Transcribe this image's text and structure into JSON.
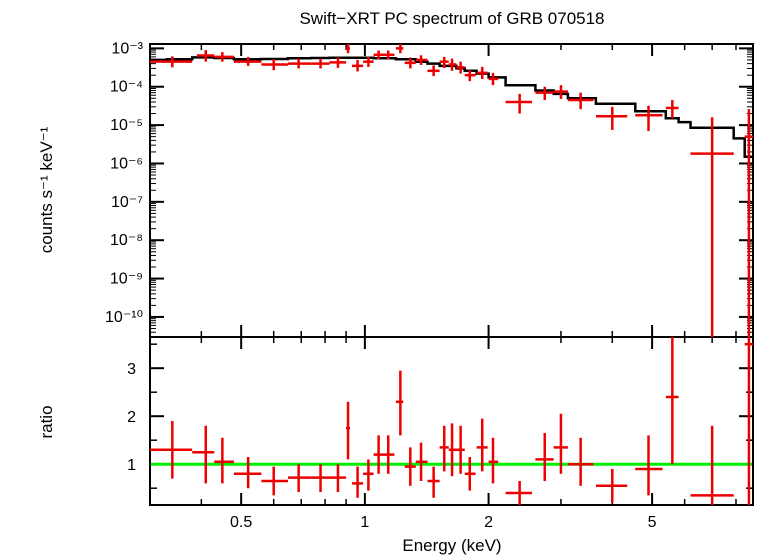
{
  "chart_data": [
    {
      "type": "scatter",
      "title": "Swift−XRT PC spectrum of GRB 070518",
      "xlabel": "Energy (keV)",
      "ylabel": "counts s⁻¹ keV⁻¹",
      "xscale": "log",
      "yscale": "log",
      "xlim": [
        0.3,
        8.8
      ],
      "ylim": [
        3e-11,
        0.0013
      ],
      "x_tick_labels": [
        "0.5",
        "1",
        "2",
        "5"
      ],
      "y_tick_labels": [
        "10⁻³",
        "10⁻⁴",
        "10⁻⁵",
        "10⁻⁶",
        "10⁻⁷",
        "10⁻⁸",
        "10⁻⁹",
        "10⁻¹⁰"
      ],
      "series": [
        {
          "kind": "data-with-errors",
          "color": "#ee0000",
          "points": [
            {
              "x": 0.34,
              "xlo": 0.3,
              "xhi": 0.38,
              "y": 0.00045,
              "ylo": 0.00032,
              "yhi": 0.00062
            },
            {
              "x": 0.41,
              "xlo": 0.39,
              "xhi": 0.43,
              "y": 0.00065,
              "ylo": 0.00045,
              "yhi": 0.0009
            },
            {
              "x": 0.45,
              "xlo": 0.43,
              "xhi": 0.48,
              "y": 0.0006,
              "ylo": 0.00045,
              "yhi": 0.0008
            },
            {
              "x": 0.52,
              "xlo": 0.48,
              "xhi": 0.56,
              "y": 0.00045,
              "ylo": 0.00035,
              "yhi": 0.0006
            },
            {
              "x": 0.6,
              "xlo": 0.56,
              "xhi": 0.65,
              "y": 0.00038,
              "ylo": 0.00027,
              "yhi": 0.00052
            },
            {
              "x": 0.69,
              "xlo": 0.65,
              "xhi": 0.74,
              "y": 0.0004,
              "ylo": 0.0003,
              "yhi": 0.00054
            },
            {
              "x": 0.78,
              "xlo": 0.74,
              "xhi": 0.82,
              "y": 0.0004,
              "ylo": 0.0003,
              "yhi": 0.00054
            },
            {
              "x": 0.86,
              "xlo": 0.82,
              "xhi": 0.9,
              "y": 0.00043,
              "ylo": 0.00031,
              "yhi": 0.00058
            },
            {
              "x": 0.91,
              "xlo": 0.9,
              "xhi": 0.92,
              "y": 0.001,
              "ylo": 0.00075,
              "yhi": 0.0013
            },
            {
              "x": 0.96,
              "xlo": 0.93,
              "xhi": 0.99,
              "y": 0.00035,
              "ylo": 0.00025,
              "yhi": 0.0005
            },
            {
              "x": 1.02,
              "xlo": 0.99,
              "xhi": 1.05,
              "y": 0.00045,
              "ylo": 0.00033,
              "yhi": 0.0006
            },
            {
              "x": 1.08,
              "xlo": 1.05,
              "xhi": 1.11,
              "y": 0.00068,
              "ylo": 0.00052,
              "yhi": 0.00088
            },
            {
              "x": 1.14,
              "xlo": 1.11,
              "xhi": 1.18,
              "y": 0.00068,
              "ylo": 0.00052,
              "yhi": 0.00088
            },
            {
              "x": 1.22,
              "xlo": 1.19,
              "xhi": 1.24,
              "y": 0.001,
              "ylo": 0.00075,
              "yhi": 0.0013
            },
            {
              "x": 1.29,
              "xlo": 1.25,
              "xhi": 1.33,
              "y": 0.00042,
              "ylo": 0.0003,
              "yhi": 0.00058
            },
            {
              "x": 1.37,
              "xlo": 1.33,
              "xhi": 1.42,
              "y": 0.0005,
              "ylo": 0.00037,
              "yhi": 0.00066
            },
            {
              "x": 1.47,
              "xlo": 1.42,
              "xhi": 1.52,
              "y": 0.00026,
              "ylo": 0.00019,
              "yhi": 0.00036
            },
            {
              "x": 1.56,
              "xlo": 1.52,
              "xhi": 1.6,
              "y": 0.00045,
              "ylo": 0.00031,
              "yhi": 0.0006
            },
            {
              "x": 1.63,
              "xlo": 1.6,
              "xhi": 1.67,
              "y": 0.00038,
              "ylo": 0.00026,
              "yhi": 0.00054
            },
            {
              "x": 1.71,
              "xlo": 1.67,
              "xhi": 1.75,
              "y": 0.00032,
              "ylo": 0.00022,
              "yhi": 0.00045
            },
            {
              "x": 1.8,
              "xlo": 1.75,
              "xhi": 1.86,
              "y": 0.0002,
              "ylo": 0.00014,
              "yhi": 0.00027
            },
            {
              "x": 1.93,
              "xlo": 1.87,
              "xhi": 1.99,
              "y": 0.00023,
              "ylo": 0.00016,
              "yhi": 0.00033
            },
            {
              "x": 2.05,
              "xlo": 2.0,
              "xhi": 2.11,
              "y": 0.00016,
              "ylo": 0.00011,
              "yhi": 0.00023
            },
            {
              "x": 2.38,
              "xlo": 2.2,
              "xhi": 2.55,
              "y": 4e-05,
              "ylo": 2e-05,
              "yhi": 6.5e-05
            },
            {
              "x": 2.74,
              "xlo": 2.6,
              "xhi": 2.88,
              "y": 7e-05,
              "ylo": 4.5e-05,
              "yhi": 0.0001
            },
            {
              "x": 3.0,
              "xlo": 2.88,
              "xhi": 3.12,
              "y": 7.5e-05,
              "ylo": 4.8e-05,
              "yhi": 0.00011
            },
            {
              "x": 3.35,
              "xlo": 3.12,
              "xhi": 3.6,
              "y": 4.5e-05,
              "ylo": 2.6e-05,
              "yhi": 7e-05
            },
            {
              "x": 4.0,
              "xlo": 3.65,
              "xhi": 4.35,
              "y": 1.7e-05,
              "ylo": 7.5e-06,
              "yhi": 3e-05
            },
            {
              "x": 4.9,
              "xlo": 4.55,
              "xhi": 5.3,
              "y": 1.8e-05,
              "ylo": 7e-06,
              "yhi": 3.2e-05
            },
            {
              "x": 5.6,
              "xlo": 5.4,
              "xhi": 5.8,
              "y": 2.8e-05,
              "ylo": 1.5e-05,
              "yhi": 4.5e-05
            },
            {
              "x": 7.0,
              "xlo": 6.2,
              "xhi": 7.9,
              "y": 1.8e-06,
              "ylo": 3e-11,
              "yhi": 1.6e-05
            },
            {
              "x": 8.6,
              "xlo": 8.4,
              "xhi": 8.8,
              "y": 5e-06,
              "ylo": 3e-11,
              "yhi": 2.6e-05
            }
          ]
        },
        {
          "kind": "model-histogram",
          "color": "#000000",
          "edges": [
            0.3,
            0.33,
            0.38,
            0.43,
            0.48,
            0.56,
            0.65,
            0.74,
            0.82,
            0.92,
            1.05,
            1.19,
            1.33,
            1.42,
            1.52,
            1.67,
            1.75,
            1.87,
            2.0,
            2.2,
            2.6,
            2.88,
            3.12,
            3.65,
            4.55,
            5.4,
            5.8,
            6.2,
            7.9,
            8.4,
            8.8
          ],
          "values": [
            0.0005,
            0.00052,
            0.00058,
            0.00056,
            0.00052,
            0.00053,
            0.00055,
            0.00056,
            0.00057,
            0.00057,
            0.00055,
            0.00052,
            0.00045,
            0.0004,
            0.00035,
            0.0003,
            0.00026,
            0.00022,
            0.000175,
            0.00011,
            8e-05,
            6.5e-05,
            5e-05,
            3.6e-05,
            2.3e-05,
            1.5e-05,
            1.2e-05,
            8.5e-06,
            4.5e-06,
            1.5e-06
          ]
        }
      ]
    },
    {
      "type": "scatter",
      "xlabel": "Energy (keV)",
      "ylabel": "ratio",
      "xscale": "log",
      "xlim": [
        0.3,
        8.8
      ],
      "ylim": [
        0.15,
        3.65
      ],
      "x_tick_labels": [
        "0.5",
        "1",
        "2",
        "5"
      ],
      "y_tick_labels": [
        "1",
        "2",
        "3"
      ],
      "reference_line": {
        "y": 1,
        "color": "#00ee00"
      },
      "series": [
        {
          "kind": "ratio-with-errors",
          "color": "#ee0000",
          "points": [
            {
              "x": 0.34,
              "xlo": 0.3,
              "xhi": 0.38,
              "y": 1.3,
              "ylo": 0.7,
              "yhi": 1.9
            },
            {
              "x": 0.41,
              "xlo": 0.38,
              "xhi": 0.43,
              "y": 1.25,
              "ylo": 0.6,
              "yhi": 1.8
            },
            {
              "x": 0.45,
              "xlo": 0.43,
              "xhi": 0.48,
              "y": 1.05,
              "ylo": 0.6,
              "yhi": 1.55
            },
            {
              "x": 0.52,
              "xlo": 0.48,
              "xhi": 0.56,
              "y": 0.8,
              "ylo": 0.5,
              "yhi": 1.15
            },
            {
              "x": 0.6,
              "xlo": 0.56,
              "xhi": 0.65,
              "y": 0.65,
              "ylo": 0.35,
              "yhi": 0.95
            },
            {
              "x": 0.69,
              "xlo": 0.65,
              "xhi": 0.74,
              "y": 0.72,
              "ylo": 0.42,
              "yhi": 1.0
            },
            {
              "x": 0.78,
              "xlo": 0.74,
              "xhi": 0.82,
              "y": 0.72,
              "ylo": 0.42,
              "yhi": 1.0
            },
            {
              "x": 0.86,
              "xlo": 0.82,
              "xhi": 0.9,
              "y": 0.72,
              "ylo": 0.42,
              "yhi": 1.0
            },
            {
              "x": 0.91,
              "xlo": 0.9,
              "xhi": 0.92,
              "y": 1.75,
              "ylo": 1.1,
              "yhi": 2.3
            },
            {
              "x": 0.96,
              "xlo": 0.93,
              "xhi": 0.99,
              "y": 0.6,
              "ylo": 0.3,
              "yhi": 0.95
            },
            {
              "x": 1.02,
              "xlo": 0.99,
              "xhi": 1.05,
              "y": 0.8,
              "ylo": 0.45,
              "yhi": 1.1
            },
            {
              "x": 1.08,
              "xlo": 1.05,
              "xhi": 1.11,
              "y": 1.2,
              "ylo": 0.8,
              "yhi": 1.6
            },
            {
              "x": 1.14,
              "xlo": 1.11,
              "xhi": 1.18,
              "y": 1.2,
              "ylo": 0.8,
              "yhi": 1.6
            },
            {
              "x": 1.22,
              "xlo": 1.19,
              "xhi": 1.24,
              "y": 2.3,
              "ylo": 1.6,
              "yhi": 2.95
            },
            {
              "x": 1.29,
              "xlo": 1.25,
              "xhi": 1.33,
              "y": 0.95,
              "ylo": 0.55,
              "yhi": 1.35
            },
            {
              "x": 1.37,
              "xlo": 1.33,
              "xhi": 1.42,
              "y": 1.05,
              "ylo": 0.65,
              "yhi": 1.45
            },
            {
              "x": 1.47,
              "xlo": 1.42,
              "xhi": 1.52,
              "y": 0.65,
              "ylo": 0.3,
              "yhi": 0.95
            },
            {
              "x": 1.56,
              "xlo": 1.52,
              "xhi": 1.6,
              "y": 1.35,
              "ylo": 0.85,
              "yhi": 1.8
            },
            {
              "x": 1.63,
              "xlo": 1.6,
              "xhi": 1.67,
              "y": 1.3,
              "ylo": 0.75,
              "yhi": 1.85
            },
            {
              "x": 1.71,
              "xlo": 1.67,
              "xhi": 1.75,
              "y": 1.3,
              "ylo": 0.8,
              "yhi": 1.8
            },
            {
              "x": 1.8,
              "xlo": 1.75,
              "xhi": 1.86,
              "y": 0.8,
              "ylo": 0.45,
              "yhi": 1.15
            },
            {
              "x": 1.93,
              "xlo": 1.87,
              "xhi": 1.99,
              "y": 1.35,
              "ylo": 0.85,
              "yhi": 1.95
            },
            {
              "x": 2.05,
              "xlo": 2.0,
              "xhi": 2.11,
              "y": 1.05,
              "ylo": 0.6,
              "yhi": 1.55
            },
            {
              "x": 2.38,
              "xlo": 2.2,
              "xhi": 2.55,
              "y": 0.4,
              "ylo": 0.15,
              "yhi": 0.65
            },
            {
              "x": 2.74,
              "xlo": 2.6,
              "xhi": 2.88,
              "y": 1.1,
              "ylo": 0.65,
              "yhi": 1.65
            },
            {
              "x": 3.0,
              "xlo": 2.88,
              "xhi": 3.12,
              "y": 1.35,
              "ylo": 0.8,
              "yhi": 2.05
            },
            {
              "x": 3.35,
              "xlo": 3.12,
              "xhi": 3.6,
              "y": 1.0,
              "ylo": 0.55,
              "yhi": 1.55
            },
            {
              "x": 4.0,
              "xlo": 3.65,
              "xhi": 4.35,
              "y": 0.55,
              "ylo": 0.2,
              "yhi": 0.9
            },
            {
              "x": 4.9,
              "xlo": 4.55,
              "xhi": 5.3,
              "y": 0.9,
              "ylo": 0.35,
              "yhi": 1.6
            },
            {
              "x": 5.6,
              "xlo": 5.4,
              "xhi": 5.8,
              "y": 2.4,
              "ylo": 1.0,
              "yhi": 3.65
            },
            {
              "x": 7.0,
              "xlo": 6.2,
              "xhi": 7.9,
              "y": 0.35,
              "ylo": 0.15,
              "yhi": 1.8
            },
            {
              "x": 8.6,
              "xlo": 8.4,
              "xhi": 8.8,
              "y": 3.5,
              "ylo": 0.15,
              "yhi": 3.65
            }
          ]
        }
      ]
    }
  ]
}
